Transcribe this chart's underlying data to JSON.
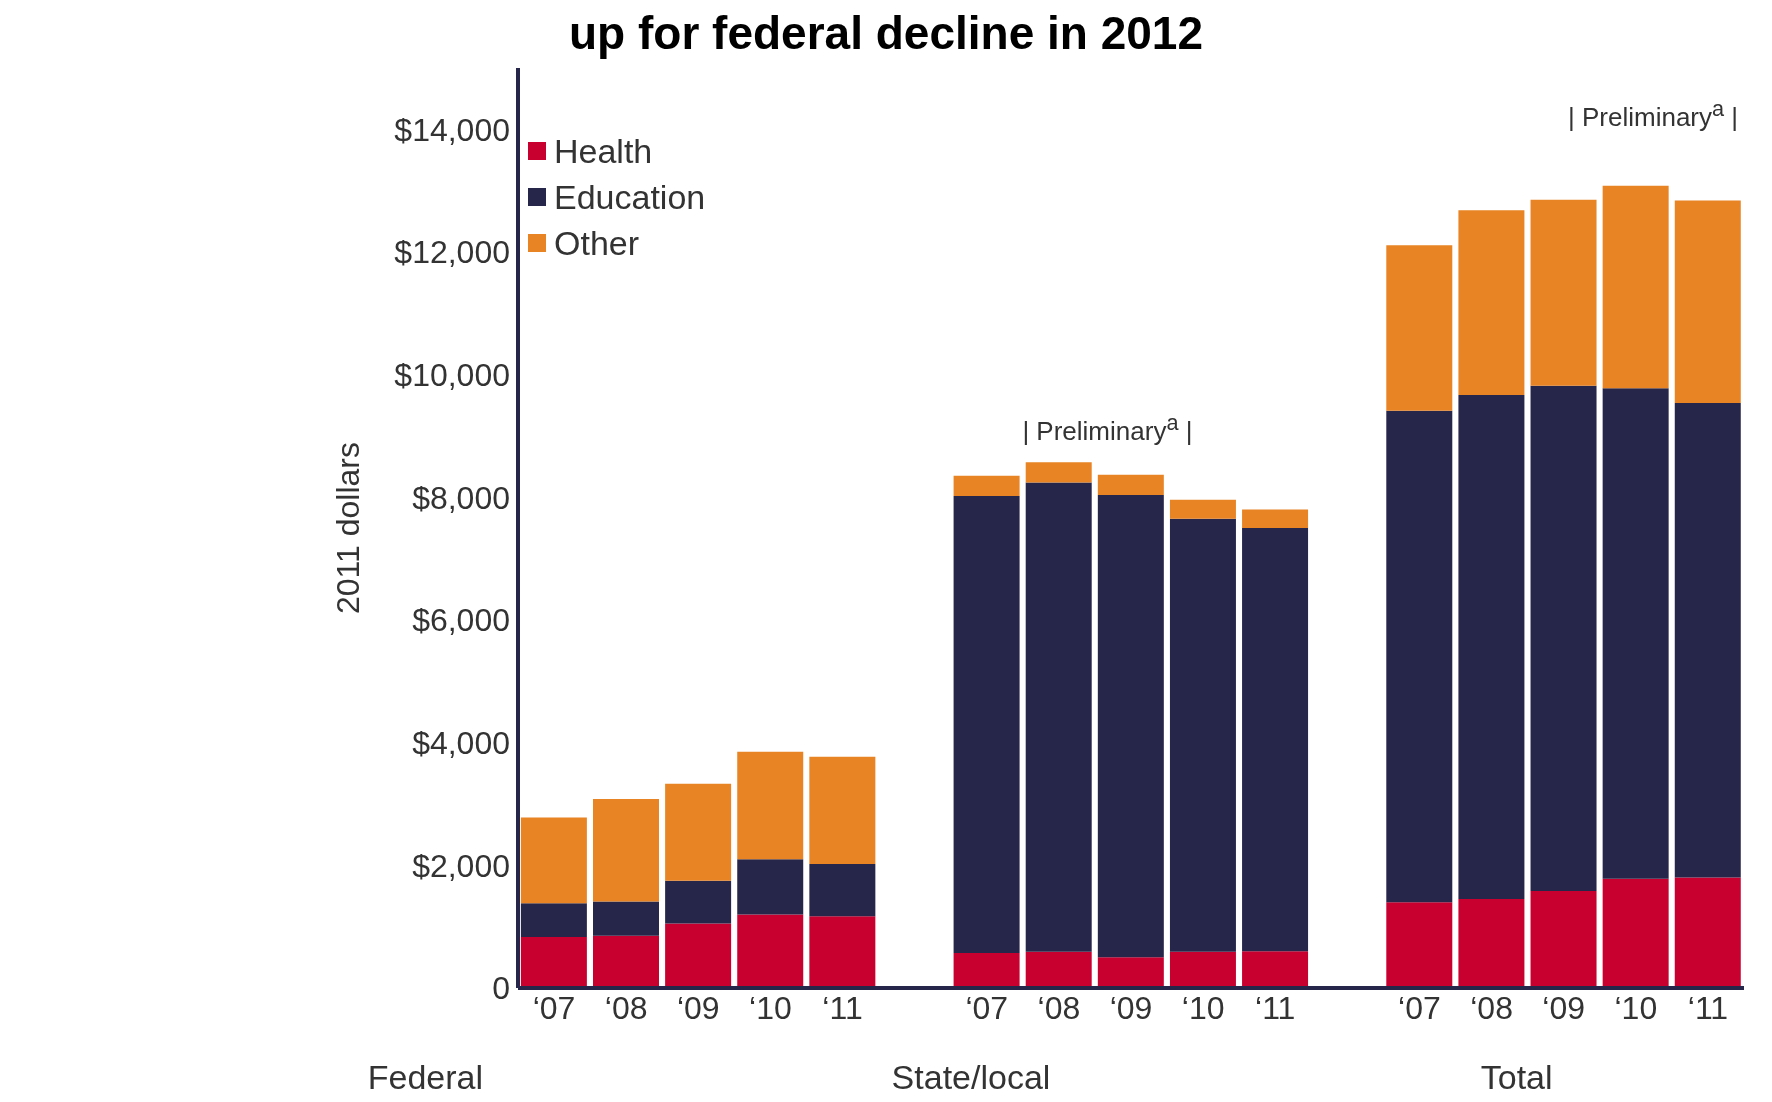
{
  "chart_data": {
    "type": "bar",
    "title": "up for federal decline in 2012",
    "ylabel": "2011 dollars",
    "categories": [
      "‘07",
      "‘08",
      "‘09",
      "‘10",
      "‘11",
      null,
      "‘07",
      "‘08",
      "‘09",
      "‘10",
      "‘11",
      null,
      "‘07",
      "‘08",
      "‘09",
      "‘10",
      "‘11"
    ],
    "series": [
      {
        "name": "Health",
        "color": "#c8002f",
        "values": [
          830,
          850,
          1050,
          1200,
          1170,
          null,
          570,
          590,
          500,
          590,
          600,
          null,
          1400,
          1450,
          1580,
          1780,
          1800
        ]
      },
      {
        "name": "Education",
        "color": "#26264a",
        "values": [
          550,
          560,
          700,
          900,
          850,
          null,
          7450,
          7650,
          7540,
          7060,
          6900,
          null,
          8010,
          8220,
          8240,
          8000,
          7740
        ]
      },
      {
        "name": "Other",
        "color": "#e88424",
        "values": [
          1400,
          1670,
          1580,
          1750,
          1750,
          null,
          330,
          330,
          330,
          310,
          300,
          null,
          2700,
          3010,
          3030,
          3300,
          3300
        ]
      }
    ],
    "stacked": true,
    "ylim": [
      0,
      15000
    ],
    "yticks": [
      0,
      {
        "value": 2000,
        "label": "$2,000"
      },
      {
        "value": 4000,
        "label": "$4,000"
      },
      {
        "value": 6000,
        "label": "$6,000"
      },
      {
        "value": 8000,
        "label": "$8,000"
      },
      {
        "value": 10000,
        "label": "$10,000"
      },
      {
        "value": 12000,
        "label": "$12,000"
      },
      {
        "value": 14000,
        "label": "$14,000"
      }
    ],
    "legend": "top left",
    "grid": false,
    "annotations": [
      "Federal",
      "State/local",
      "Total",
      "| Preliminary$^{a}$ |",
      "| Preliminary$^{a}$ |"
    ]
  }
}
